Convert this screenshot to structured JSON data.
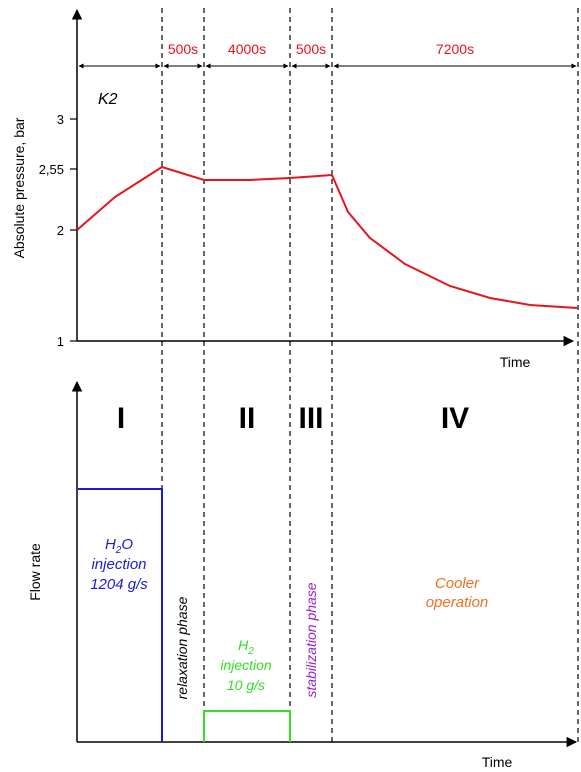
{
  "top_chart": {
    "series_label": "K2",
    "ylabel": "Absolute pressure, bar",
    "xlabel": "Time",
    "y_ticks": [
      "1",
      "2",
      "2,55",
      "3"
    ],
    "durations": [
      "500s",
      "4000s",
      "500s",
      "7200s"
    ],
    "colors": {
      "curve": "#e8141b",
      "durations": "#e8141b"
    }
  },
  "phases": [
    "I",
    "II",
    "III",
    "IV"
  ],
  "bottom_chart": {
    "ylabel": "Flow rate",
    "xlabel": "Time",
    "h2o_injection": {
      "formula_base": "H",
      "formula_sub": "2",
      "formula_tail": "O",
      "line2": "injection",
      "line3": "1204 g/s",
      "color": "#1a1adb"
    },
    "relaxation_label": "relaxation phase",
    "h2_injection": {
      "formula_base": "H",
      "formula_sub": "2",
      "line2": "injection",
      "line3": "10 g/s",
      "color": "#33dd22"
    },
    "stabilization_label": "stabilization phase",
    "stabilization_color": "#9922cc",
    "cooler_label": {
      "line1": "Cooler",
      "line2": "operation",
      "color": "#f07020"
    }
  }
}
